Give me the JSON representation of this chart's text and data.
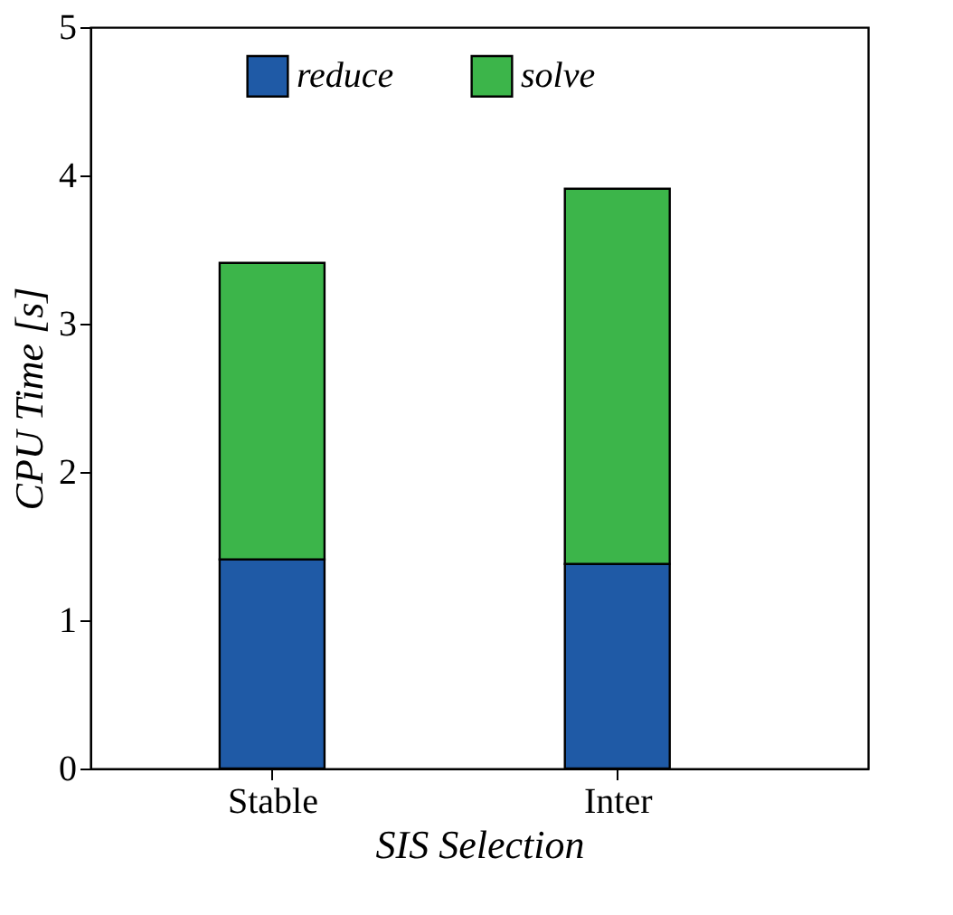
{
  "chart_data": {
    "type": "bar",
    "stacked": true,
    "xlabel": "SIS Selection",
    "ylabel": "CPU Time [s]",
    "categories": [
      "Stable",
      "Inter"
    ],
    "series": [
      {
        "name": "reduce",
        "color": "#1f5aa6",
        "values": [
          1.41,
          1.38
        ]
      },
      {
        "name": "solve",
        "color": "#3cb54a",
        "values": [
          2.0,
          2.53
        ]
      }
    ],
    "ylim": [
      0,
      5
    ],
    "yticks": [
      0,
      1,
      2,
      3,
      4,
      5
    ],
    "grid": false,
    "legend": "top"
  }
}
